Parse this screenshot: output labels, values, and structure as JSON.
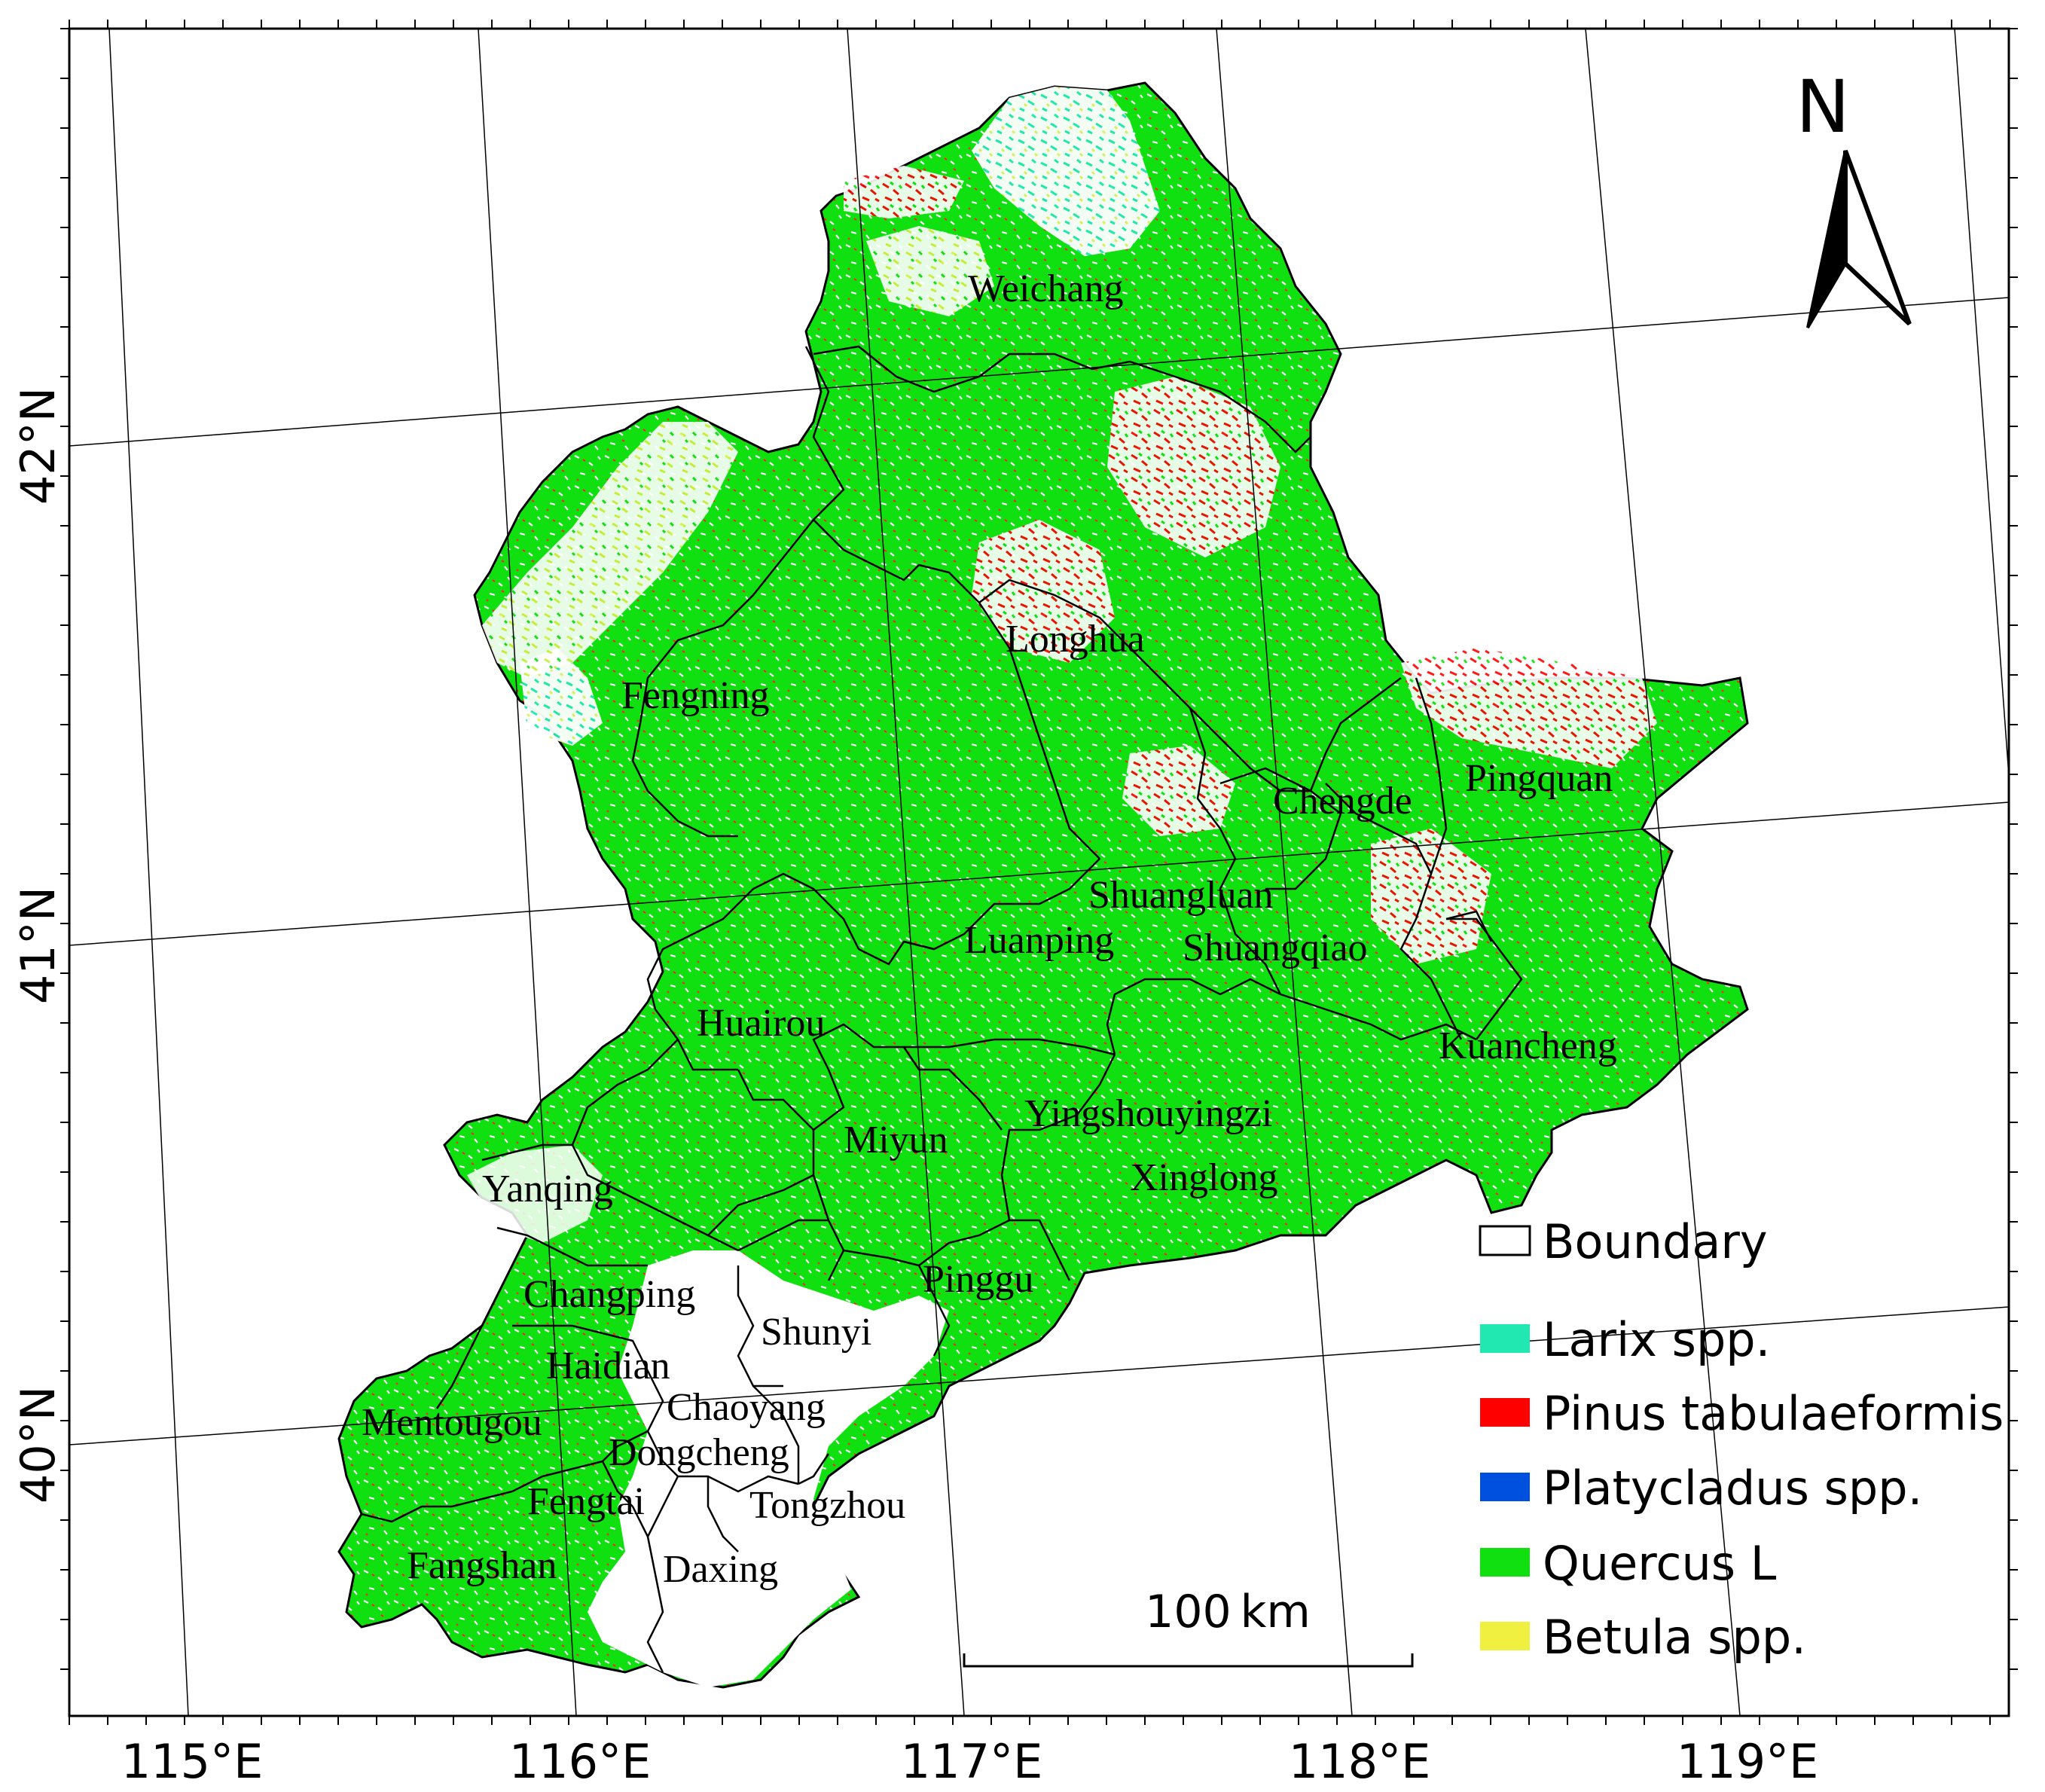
{
  "map": {
    "longitude_labels": [
      "115°E",
      "116°E",
      "117°E",
      "118°E",
      "119°E"
    ],
    "latitude_labels": [
      "42°N",
      "41°N",
      "40°N"
    ],
    "districts": [
      "Weichang",
      "Longhua",
      "Fengning",
      "Chengde",
      "Pingquan",
      "Shuangluan",
      "Luanping",
      "Shuangqiao",
      "Huairou",
      "Kuancheng",
      "Yingshouyingzi",
      "Miyun",
      "Xinglong",
      "Yanqing",
      "Pinggu",
      "Changping",
      "Shunyi",
      "Haidian",
      "Chaoyang",
      "Mentougou",
      "Dongcheng",
      "Fengtai",
      "Tongzhou",
      "Fangshan",
      "Daxing"
    ],
    "north_arrow": {
      "label": "N",
      "icon": "north-arrow-icon"
    },
    "scale_bar": {
      "label": "100 km"
    }
  },
  "legend": {
    "items": [
      {
        "label": "Boundary",
        "color": "#ffffff",
        "outline": "#000000"
      },
      {
        "label": "Larix spp.",
        "color": "#20e8b0"
      },
      {
        "label": "Pinus tabulaeformis",
        "color": "#ff0000"
      },
      {
        "label": "Platycladus spp.",
        "color": "#0050e0"
      },
      {
        "label": "Quercus L",
        "color": "#10e010"
      },
      {
        "label": "Betula spp.",
        "color": "#f0f040"
      }
    ]
  }
}
